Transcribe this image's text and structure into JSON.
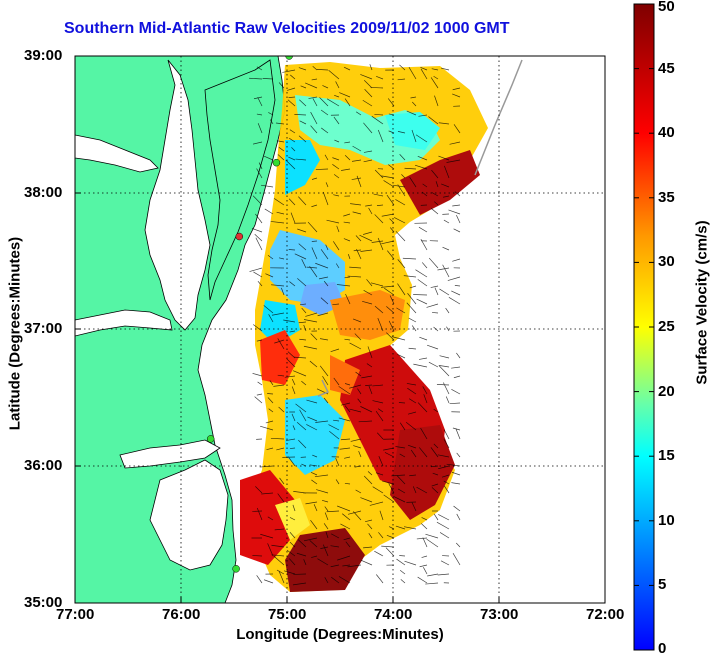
{
  "title": "Southern Mid-Atlantic Raw Velocities 2009/11/02 1000 GMT",
  "map": {
    "xlabel": "Longitude (Degrees:Minutes)",
    "ylabel": "Latitude (Degrees:Minutes)",
    "x_ticks": [
      "77:00",
      "76:00",
      "75:00",
      "74:00",
      "73:00",
      "72:00"
    ],
    "y_ticks": [
      "39:00",
      "38:00",
      "37:00",
      "36:00",
      "35:00"
    ],
    "lon_range": [
      -77,
      -72
    ],
    "lat_range": [
      35,
      39
    ],
    "gridlines": "dotted",
    "land_color": "#55f5a5",
    "water_color": "#ffffff"
  },
  "colorbar": {
    "label": "Surface Velocity (cm/s)",
    "ticks": [
      "0",
      "5",
      "10",
      "15",
      "20",
      "25",
      "30",
      "35",
      "40",
      "45",
      "50"
    ],
    "range": [
      0,
      50
    ]
  },
  "stations": [
    {
      "lon": -74.98,
      "lat": 39.0,
      "color": "#33dd33"
    },
    {
      "lon": -75.1,
      "lat": 38.22,
      "color": "#33dd33"
    },
    {
      "lon": -75.45,
      "lat": 37.68,
      "color": "#dd3333"
    },
    {
      "lon": -75.72,
      "lat": 36.2,
      "color": "#33dd33"
    },
    {
      "lon": -75.48,
      "lat": 35.25,
      "color": "#33dd33"
    }
  ]
}
